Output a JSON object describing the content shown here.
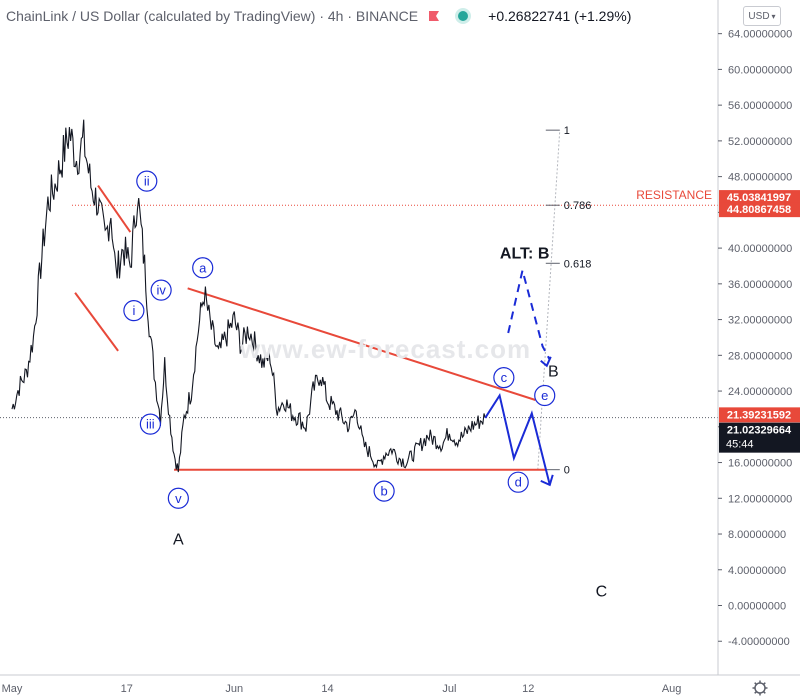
{
  "header": {
    "title": "ChainLink / US Dollar (calculated by TradingView) · 4h · BINANCE",
    "change": "+0.26822741 (+1.29%)",
    "currency": "USD"
  },
  "watermark": "www.ew-forecast.com",
  "colors": {
    "red": "#e8493a",
    "blue": "#1a2bd6",
    "text": "#131722",
    "axis": "#5d606b",
    "grid": "#b3b6bd"
  },
  "chart_data": {
    "type": "line",
    "title": "ChainLink / US Dollar (calculated by TradingView) · 4h · BINANCE",
    "ylim": [
      -6,
      66
    ],
    "y_ticks": [
      -4,
      0,
      4,
      8,
      12,
      16,
      20,
      24,
      28,
      32,
      36,
      40,
      44,
      48,
      52,
      56,
      60,
      64
    ],
    "y_tick_labels": [
      "-4.00000000",
      "0.00000000",
      "4.00000000",
      "8.00000000",
      "12.00000000",
      "16.00000000",
      "20.00000000",
      "24.00000000",
      "28.00000000",
      "32.00000000",
      "36.00000000",
      "40.00000000",
      "44.00000000",
      "48.00000000",
      "52.00000000",
      "56.00000000",
      "60.00000000",
      "64.00000000"
    ],
    "x_labels": [
      "May",
      "17",
      "Jun",
      "14",
      "Jul",
      "12",
      "Aug"
    ],
    "x_label_days": [
      0,
      16,
      31,
      44,
      61,
      72,
      92
    ],
    "price_labels": [
      {
        "value": 45.03841997,
        "text": "45.03841997",
        "color": "#e8493a"
      },
      {
        "value": 44.80867458,
        "text": "44.80867458",
        "color": "#e8493a"
      },
      {
        "value": 21.39231592,
        "text": "21.39231592",
        "color": "#e8493a"
      },
      {
        "value": 21.02329664,
        "text": "21.02329664",
        "sub": "45:44",
        "color": "#131722"
      }
    ],
    "resistance": {
      "label": "RESISTANCE",
      "value": 44.8
    },
    "price_series": {
      "name": "LINKUSD",
      "points": [
        [
          0,
          22
        ],
        [
          1,
          24.5
        ],
        [
          2,
          26
        ],
        [
          3,
          30
        ],
        [
          4,
          38
        ],
        [
          5,
          45
        ],
        [
          6,
          47
        ],
        [
          7,
          50
        ],
        [
          8,
          53
        ],
        [
          9,
          50
        ],
        [
          10,
          52
        ],
        [
          11,
          47
        ],
        [
          12,
          45
        ],
        [
          13,
          41
        ],
        [
          13.8,
          44
        ],
        [
          14.5,
          37
        ],
        [
          15.5,
          40
        ],
        [
          16.5,
          38
        ],
        [
          17.5,
          46
        ],
        [
          18.5,
          38
        ],
        [
          19.3,
          30
        ],
        [
          20,
          25
        ],
        [
          20.7,
          21
        ],
        [
          21.3,
          27
        ],
        [
          22,
          21
        ],
        [
          22.6,
          17
        ],
        [
          23.2,
          15
        ],
        [
          24,
          21
        ],
        [
          25,
          24
        ],
        [
          26,
          31
        ],
        [
          26.8,
          35
        ],
        [
          27.8,
          31
        ],
        [
          28.8,
          28
        ],
        [
          29.8,
          30
        ],
        [
          31,
          32
        ],
        [
          32,
          29
        ],
        [
          33,
          31
        ],
        [
          34,
          29
        ],
        [
          35,
          27
        ],
        [
          36,
          28
        ],
        [
          37,
          22
        ],
        [
          38,
          23
        ],
        [
          39,
          21.5
        ],
        [
          40,
          21
        ],
        [
          41,
          20
        ],
        [
          42,
          24
        ],
        [
          43,
          26
        ],
        [
          44,
          23
        ],
        [
          45,
          22
        ],
        [
          46,
          21
        ],
        [
          47,
          20
        ],
        [
          48,
          22
        ],
        [
          49,
          18
        ],
        [
          50,
          17
        ],
        [
          51,
          15.5
        ],
        [
          52,
          17
        ],
        [
          53,
          17.5
        ],
        [
          54,
          16.5
        ],
        [
          55,
          16
        ],
        [
          56,
          17
        ],
        [
          57,
          18
        ],
        [
          58,
          19
        ],
        [
          59,
          18.5
        ],
        [
          60,
          18
        ],
        [
          61,
          19.5
        ],
        [
          62,
          18.5
        ],
        [
          63,
          19
        ],
        [
          64,
          20
        ],
        [
          65,
          20.5
        ],
        [
          66,
          21
        ]
      ]
    },
    "fib_levels": [
      {
        "label": "1",
        "value": 53.2
      },
      {
        "label": "0.786",
        "value": 44.8
      },
      {
        "label": "0.618",
        "value": 38.3
      },
      {
        "label": "0",
        "value": 15.2
      }
    ],
    "trendlines_red": [
      {
        "points": [
          [
            24.5,
            35.5
          ],
          [
            73,
            23
          ]
        ]
      },
      {
        "points": [
          [
            22.6,
            15.2
          ],
          [
            74.5,
            15.2
          ]
        ]
      },
      {
        "points": [
          [
            8.8,
            35
          ],
          [
            14.8,
            28.5
          ]
        ]
      },
      {
        "points": [
          [
            12,
            47
          ],
          [
            16.5,
            41.8
          ]
        ]
      }
    ],
    "projection_solid": [
      [
        66,
        21
      ],
      [
        68,
        23.5
      ],
      [
        70,
        16.5
      ],
      [
        72.5,
        21.5
      ],
      [
        75,
        13.5
      ]
    ],
    "projection_dashed": [
      [
        69.2,
        30.5
      ],
      [
        71.2,
        37.5
      ],
      [
        74,
        29
      ],
      [
        75,
        27.5
      ]
    ],
    "labels": [
      {
        "text": "ii",
        "style": "circled",
        "x": 18.8,
        "y": 47.5
      },
      {
        "text": "i",
        "style": "circled",
        "x": 17,
        "y": 33
      },
      {
        "text": "iv",
        "style": "circled",
        "x": 20.8,
        "y": 35.3
      },
      {
        "text": "iii",
        "style": "circled",
        "x": 19.3,
        "y": 20.3
      },
      {
        "text": "v",
        "style": "circled",
        "x": 23.2,
        "y": 12
      },
      {
        "text": "A",
        "style": "plain",
        "x": 23.2,
        "y": 7.5
      },
      {
        "text": "a",
        "style": "circled",
        "x": 26.6,
        "y": 37.8
      },
      {
        "text": "b",
        "style": "circled",
        "x": 51.9,
        "y": 12.8
      },
      {
        "text": "c",
        "style": "circled",
        "x": 68.6,
        "y": 25.5
      },
      {
        "text": "d",
        "style": "circled",
        "x": 70.6,
        "y": 13.8
      },
      {
        "text": "e",
        "style": "circled",
        "x": 74.3,
        "y": 23.5
      },
      {
        "text": "ALT: B",
        "style": "plain",
        "x": 71.5,
        "y": 39.5
      },
      {
        "text": "B",
        "style": "plain",
        "x": 75.5,
        "y": 26.3
      },
      {
        "text": "C",
        "style": "plain",
        "x": 82.2,
        "y": 1.7
      }
    ]
  }
}
